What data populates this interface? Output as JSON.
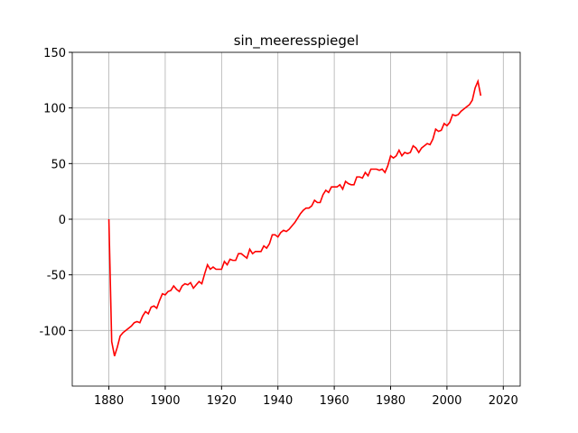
{
  "chart_data": {
    "type": "line",
    "title": "sin_meeresspiegel",
    "x": [
      1880,
      1881,
      1882,
      1883,
      1884,
      1885,
      1886,
      1887,
      1888,
      1889,
      1890,
      1891,
      1892,
      1893,
      1894,
      1895,
      1896,
      1897,
      1898,
      1899,
      1900,
      1901,
      1902,
      1903,
      1904,
      1905,
      1906,
      1907,
      1908,
      1909,
      1910,
      1911,
      1912,
      1913,
      1914,
      1915,
      1916,
      1917,
      1918,
      1919,
      1920,
      1921,
      1922,
      1923,
      1924,
      1925,
      1926,
      1927,
      1928,
      1929,
      1930,
      1931,
      1932,
      1933,
      1934,
      1935,
      1936,
      1937,
      1938,
      1939,
      1940,
      1941,
      1942,
      1943,
      1944,
      1945,
      1946,
      1947,
      1948,
      1949,
      1950,
      1951,
      1952,
      1953,
      1954,
      1955,
      1956,
      1957,
      1958,
      1959,
      1960,
      1961,
      1962,
      1963,
      1964,
      1965,
      1966,
      1967,
      1968,
      1969,
      1970,
      1971,
      1972,
      1973,
      1974,
      1975,
      1976,
      1977,
      1978,
      1979,
      1980,
      1981,
      1982,
      1983,
      1984,
      1985,
      1986,
      1987,
      1988,
      1989,
      1990,
      1991,
      1992,
      1993,
      1994,
      1995,
      1996,
      1997,
      1998,
      1999,
      2000,
      2001,
      2002,
      2003,
      2004,
      2005,
      2006,
      2007,
      2008,
      2009,
      2010,
      2011,
      2012
    ],
    "series": [
      {
        "color": "#ff0000",
        "values": [
          0,
          -110,
          -123,
          -115,
          -105,
          -102,
          -100,
          -98,
          -96,
          -93,
          -92,
          -93,
          -87,
          -83,
          -85,
          -79,
          -78,
          -80,
          -73,
          -67,
          -68,
          -65,
          -64,
          -60,
          -63,
          -65,
          -60,
          -58,
          -59,
          -57,
          -62,
          -59,
          -56,
          -58,
          -49,
          -41,
          -45,
          -43,
          -45,
          -45,
          -45,
          -38,
          -41,
          -36,
          -37,
          -37,
          -31,
          -31,
          -33,
          -35,
          -27,
          -31,
          -29,
          -29,
          -29,
          -24,
          -26,
          -22,
          -14,
          -14,
          -16,
          -12,
          -10,
          -11,
          -9,
          -6,
          -3,
          1,
          5,
          8,
          10,
          10,
          12,
          17,
          15,
          15,
          22,
          26,
          24,
          29,
          29,
          29,
          31,
          27,
          34,
          32,
          31,
          31,
          38,
          38,
          37,
          42,
          39,
          45,
          45,
          45,
          44,
          45,
          42,
          48,
          57,
          55,
          57,
          62,
          57,
          60,
          59,
          60,
          66,
          64,
          60,
          64,
          66,
          68,
          67,
          72,
          81,
          79,
          80,
          86,
          84,
          87,
          94,
          93,
          94,
          97,
          99,
          101,
          103,
          107,
          118,
          124,
          111
        ]
      }
    ],
    "xlim": [
      1867,
      2026
    ],
    "xticks": [
      1880,
      1900,
      1920,
      1940,
      1960,
      1980,
      2000,
      2020
    ],
    "ylim": [
      -150,
      150
    ],
    "yticks": [
      -100,
      -50,
      0,
      50,
      100,
      150
    ],
    "grid": true
  }
}
